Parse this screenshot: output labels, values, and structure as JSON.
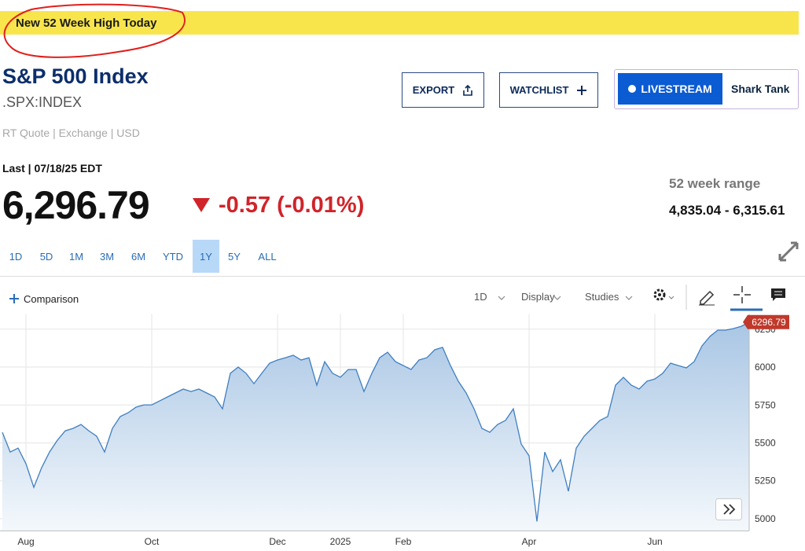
{
  "banner": "New 52 Week High Today",
  "header": {
    "title": "S&P 500 Index",
    "symbol": ".SPX:INDEX",
    "meta": "RT Quote | Exchange | USD"
  },
  "buttons": {
    "export": "EXPORT",
    "watchlist": "WATCHLIST",
    "livestream": "LIVESTREAM",
    "show": "Shark Tank"
  },
  "quote": {
    "last": "Last | 07/18/25 EDT",
    "price": "6,296.79",
    "change": "-0.57 (-0.01%)",
    "range_label": "52 week range",
    "range": "4,835.04 - 6,315.61"
  },
  "timeframes": [
    "1D",
    "5D",
    "1M",
    "3M",
    "6M",
    "YTD",
    "1Y",
    "5Y",
    "ALL"
  ],
  "selected_timeframe": 6,
  "toolbar": {
    "comparison": "Comparison",
    "interval": "1D",
    "display": "Display",
    "studies": "Studies"
  },
  "chart_data": {
    "type": "area",
    "categories": [
      null,
      null,
      null,
      "Aug",
      null,
      null,
      null,
      null,
      null,
      null,
      null,
      null,
      null,
      null,
      null,
      null,
      null,
      null,
      null,
      "Oct",
      null,
      null,
      null,
      null,
      null,
      null,
      null,
      null,
      null,
      null,
      null,
      null,
      null,
      null,
      null,
      "Dec",
      null,
      null,
      null,
      null,
      null,
      null,
      null,
      "2025",
      null,
      null,
      null,
      null,
      null,
      null,
      null,
      "Feb",
      null,
      null,
      null,
      null,
      null,
      null,
      null,
      null,
      null,
      null,
      null,
      null,
      null,
      null,
      null,
      "Apr",
      null,
      null,
      null,
      null,
      null,
      null,
      null,
      null,
      null,
      null,
      null,
      null,
      null,
      null,
      null,
      "Jun",
      null,
      null,
      null,
      null,
      null,
      null,
      null,
      null,
      null,
      null,
      null,
      null
    ],
    "series": [
      {
        "color": "#3f7fc0",
        "values": [
          5570,
          5440,
          5466,
          5363,
          5207,
          5337,
          5440,
          5518,
          5580,
          5596,
          5622,
          5580,
          5544,
          5440,
          5596,
          5674,
          5699,
          5736,
          5751,
          5751,
          5777,
          5803,
          5829,
          5855,
          5839,
          5855,
          5829,
          5803,
          5725,
          5959,
          6000,
          5959,
          5891,
          5959,
          6026,
          6047,
          6062,
          6078,
          6047,
          6062,
          5881,
          6036,
          5959,
          5933,
          5984,
          5984,
          5839,
          5959,
          6062,
          6098,
          6036,
          6010,
          5984,
          6047,
          6062,
          6114,
          6130,
          6010,
          5907,
          5829,
          5725,
          5596,
          5570,
          5622,
          5648,
          5725,
          5492,
          5415,
          4982,
          5440,
          5311,
          5389,
          5181,
          5466,
          5544,
          5596,
          5648,
          5674,
          5881,
          5933,
          5881,
          5855,
          5907,
          5922,
          5959,
          6026,
          6010,
          5995,
          6036,
          6140,
          6202,
          6244,
          6244,
          6254,
          6269,
          6296.79
        ]
      }
    ],
    "ylim": [
      4920,
      6350
    ],
    "yticks": [
      5000,
      5250,
      5500,
      5750,
      6000,
      6250
    ],
    "grid": true
  }
}
